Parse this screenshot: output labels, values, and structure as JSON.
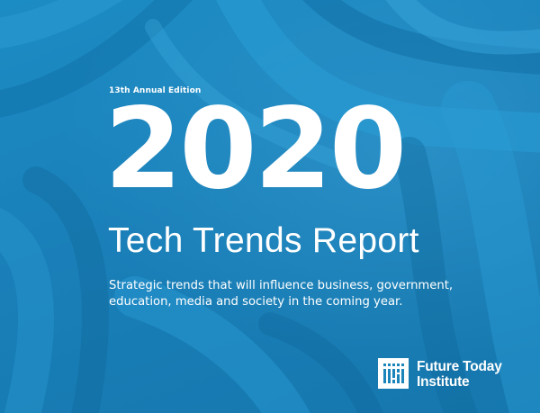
{
  "cover": {
    "edition": "13th Annual Edition",
    "year": "2020",
    "title": "Tech Trends Report",
    "tagline_lines": [
      "Strategic trends that will influence business, government,",
      "education, media and society in the coming year."
    ]
  },
  "brand": {
    "name_lines": [
      "Future Today",
      "Institute"
    ],
    "icon": "future-today-institute-logo-icon"
  },
  "colors": {
    "background": "#1a84bb",
    "text": "#ffffff"
  }
}
